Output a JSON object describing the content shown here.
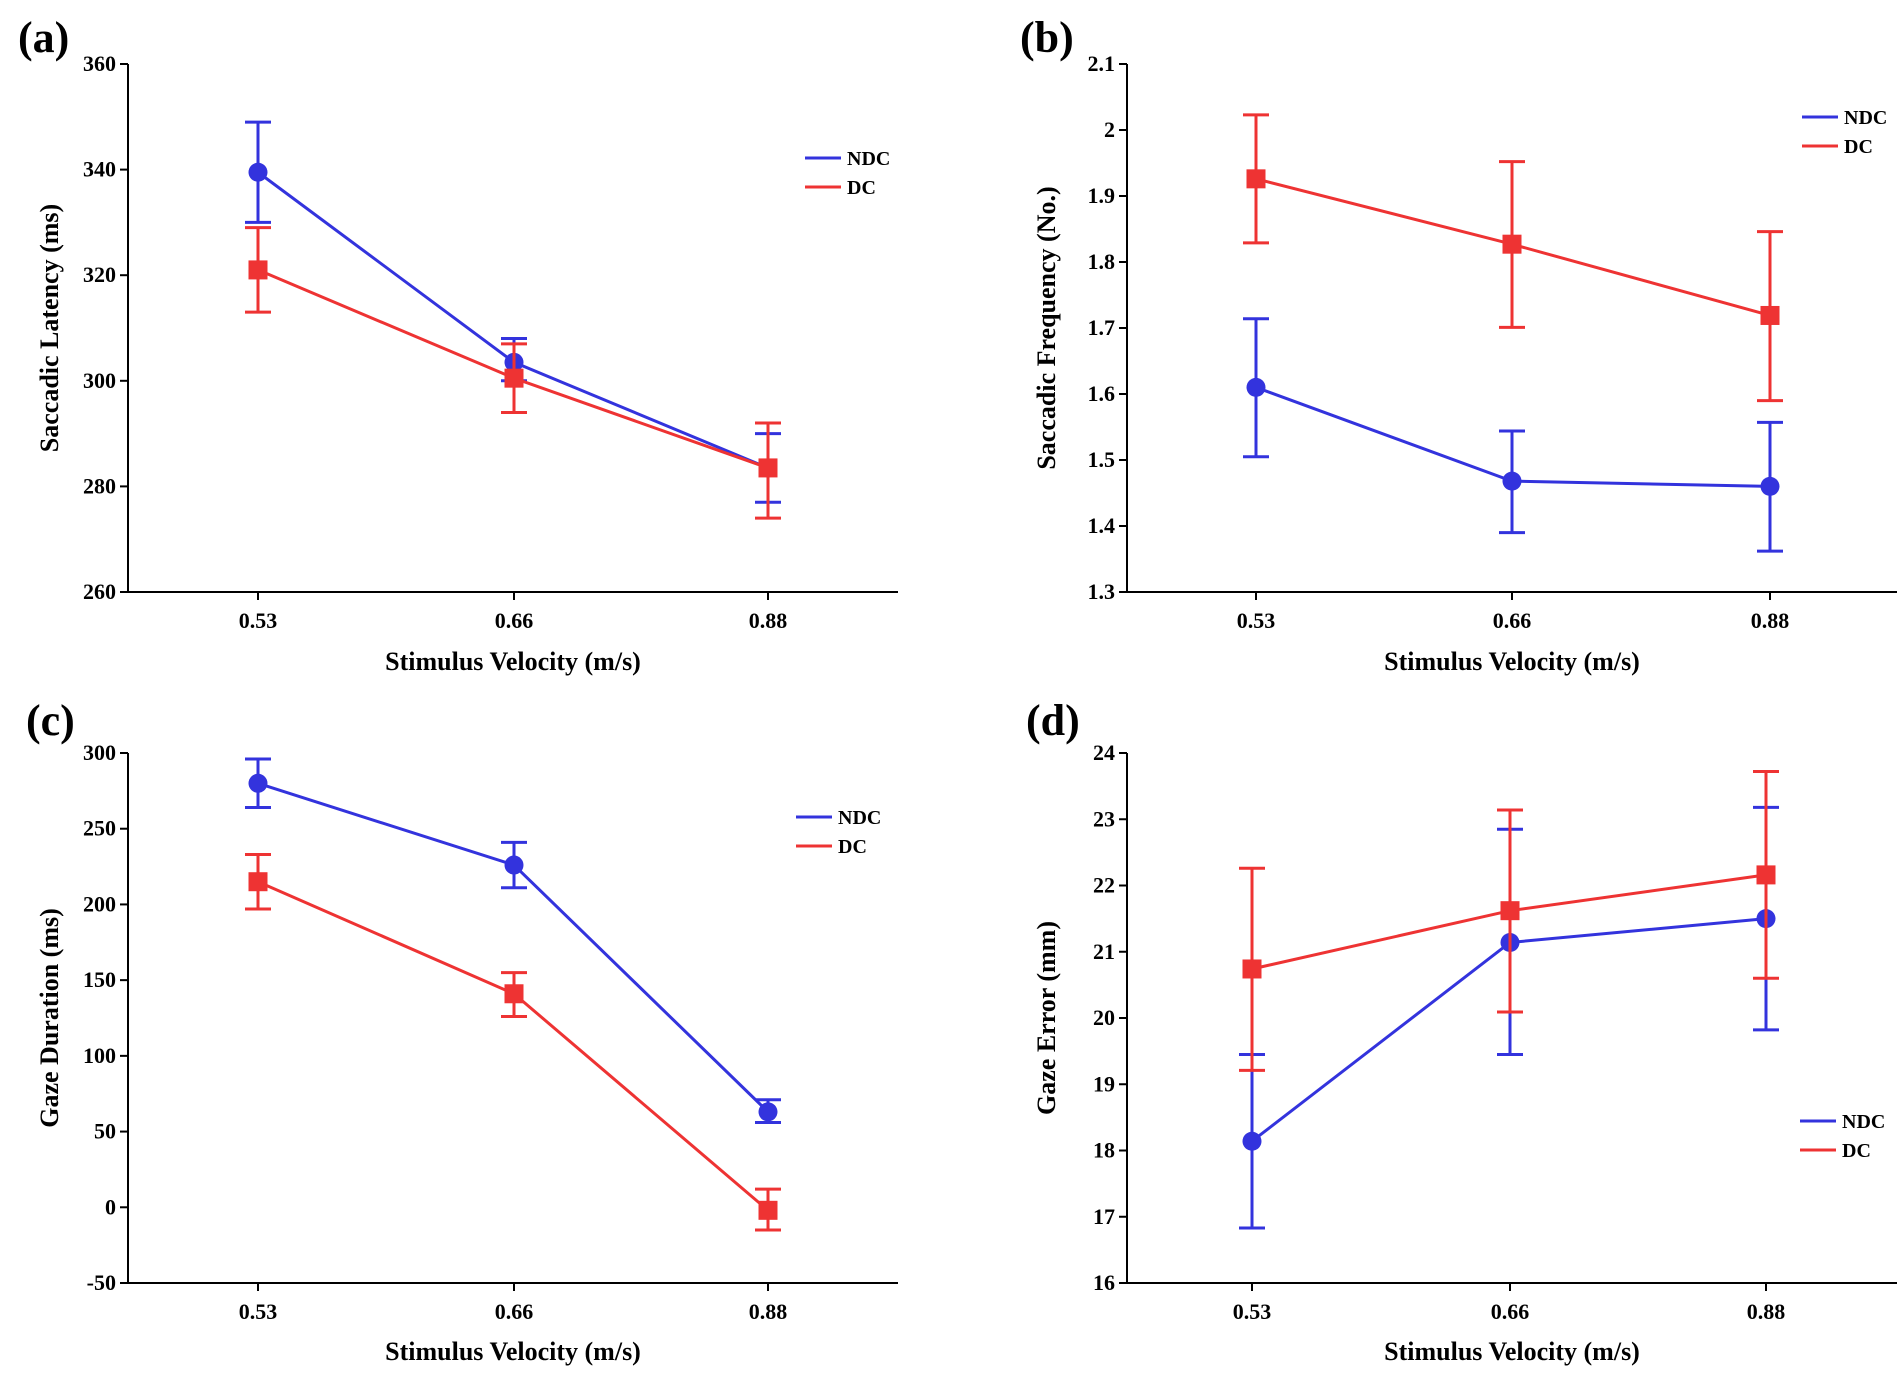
{
  "colors": {
    "NDC": "#3333dd",
    "DC": "#ee3333",
    "axis": "#000000"
  },
  "chart_data": [
    {
      "id": "a",
      "panel_label": "(a)",
      "type": "line",
      "categories": [
        "0.53",
        "0.66",
        "0.88"
      ],
      "xlabel": "Stimulus Velocity (m/s)",
      "ylabel": "Saccadic Latency (ms)",
      "ylim": [
        260,
        360
      ],
      "yticks": [
        "260",
        "280",
        "300",
        "320",
        "340",
        "360"
      ],
      "legend_position": "top-right",
      "series": [
        {
          "name": "NDC",
          "marker": "circle",
          "values": [
            339.5,
            303.5,
            283.5
          ],
          "err_low": [
            330,
            300,
            277
          ],
          "err_high": [
            349,
            308,
            290
          ]
        },
        {
          "name": "DC",
          "marker": "square",
          "values": [
            321,
            300.5,
            283.5
          ],
          "err_low": [
            313,
            294,
            274
          ],
          "err_high": [
            329,
            307,
            292
          ]
        }
      ]
    },
    {
      "id": "b",
      "panel_label": "(b)",
      "type": "line",
      "categories": [
        "0.53",
        "0.66",
        "0.88"
      ],
      "xlabel": "Stimulus Velocity (m/s)",
      "ylabel": "Saccadic Frequency (No.)",
      "ylim": [
        1.3,
        2.1
      ],
      "yticks": [
        "1.3",
        "1.4",
        "1.5",
        "1.6",
        "1.7",
        "1.8",
        "1.9",
        "2",
        "2.1"
      ],
      "legend_position": "top-right",
      "series": [
        {
          "name": "NDC",
          "marker": "circle",
          "values": [
            1.61,
            1.468,
            1.46
          ],
          "err_low": [
            1.505,
            1.39,
            1.362
          ],
          "err_high": [
            1.714,
            1.544,
            1.557
          ]
        },
        {
          "name": "DC",
          "marker": "square",
          "values": [
            1.926,
            1.827,
            1.719
          ],
          "err_low": [
            1.829,
            1.701,
            1.59
          ],
          "err_high": [
            2.023,
            1.952,
            1.846
          ]
        }
      ]
    },
    {
      "id": "c",
      "panel_label": "(c)",
      "type": "line",
      "categories": [
        "0.53",
        "0.66",
        "0.88"
      ],
      "xlabel": "Stimulus Velocity (m/s)",
      "ylabel": "Gaze Duration (ms)",
      "ylim": [
        -50,
        300
      ],
      "yticks": [
        "-50",
        "0",
        "50",
        "100",
        "150",
        "200",
        "250",
        "300"
      ],
      "legend_position": "top-right",
      "series": [
        {
          "name": "NDC",
          "marker": "circle",
          "values": [
            280,
            226,
            63
          ],
          "err_low": [
            264,
            211,
            56
          ],
          "err_high": [
            296,
            241,
            71
          ]
        },
        {
          "name": "DC",
          "marker": "square",
          "values": [
            215,
            141,
            -2
          ],
          "err_low": [
            197,
            126,
            -15
          ],
          "err_high": [
            233,
            155,
            12
          ]
        }
      ]
    },
    {
      "id": "d",
      "panel_label": "(d)",
      "type": "line",
      "categories": [
        "0.53",
        "0.66",
        "0.88"
      ],
      "xlabel": "Stimulus Velocity (m/s)",
      "ylabel": "Gaze Error (mm)",
      "ylim": [
        16,
        24
      ],
      "yticks": [
        "16",
        "17",
        "18",
        "19",
        "20",
        "21",
        "22",
        "23",
        "24"
      ],
      "legend_position": "lower-right",
      "series": [
        {
          "name": "NDC",
          "marker": "circle",
          "values": [
            18.14,
            21.14,
            21.5
          ],
          "err_low": [
            16.83,
            19.45,
            19.82
          ],
          "err_high": [
            19.45,
            22.85,
            23.18
          ]
        },
        {
          "name": "DC",
          "marker": "square",
          "values": [
            20.74,
            21.62,
            22.16
          ],
          "err_low": [
            19.21,
            20.09,
            20.6
          ],
          "err_high": [
            22.26,
            23.14,
            23.72
          ]
        }
      ]
    }
  ]
}
